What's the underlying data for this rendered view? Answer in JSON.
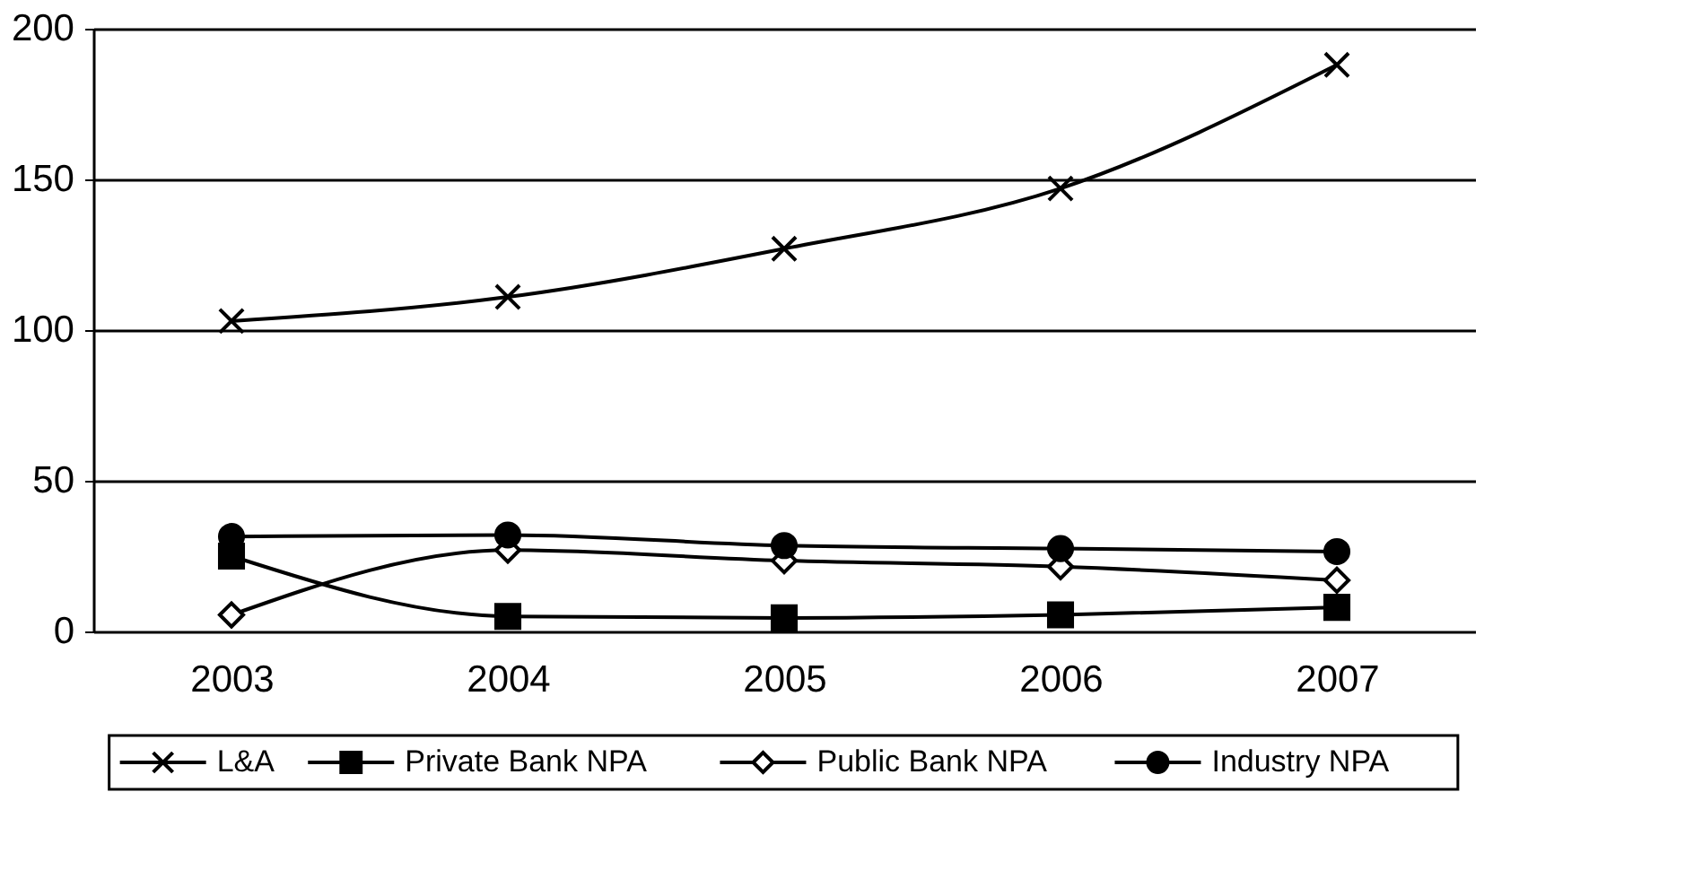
{
  "chart_data": {
    "type": "line",
    "categories": [
      "2003",
      "2004",
      "2005",
      "2006",
      "2007"
    ],
    "series": [
      {
        "name": "L&A",
        "color": "#000000",
        "marker": "cross",
        "values": [
          103,
          111,
          127,
          147,
          188
        ]
      },
      {
        "name": "Private Bank NPA",
        "color": "#000000",
        "marker": "square",
        "values": [
          25,
          5,
          4.5,
          5.5,
          8
        ]
      },
      {
        "name": "Public Bank NPA",
        "color": "#000000",
        "marker": "diamond",
        "values": [
          5.5,
          27,
          23.5,
          21.5,
          17
        ]
      },
      {
        "name": "Industry NPA",
        "color": "#000000",
        "marker": "circle",
        "values": [
          31.5,
          32,
          28.5,
          27.5,
          26.5
        ]
      }
    ],
    "ylim": [
      0,
      200
    ],
    "yticks": [
      0,
      50,
      100,
      150,
      200
    ],
    "grid": "y",
    "legend": "bottom",
    "line_style": "solid"
  }
}
